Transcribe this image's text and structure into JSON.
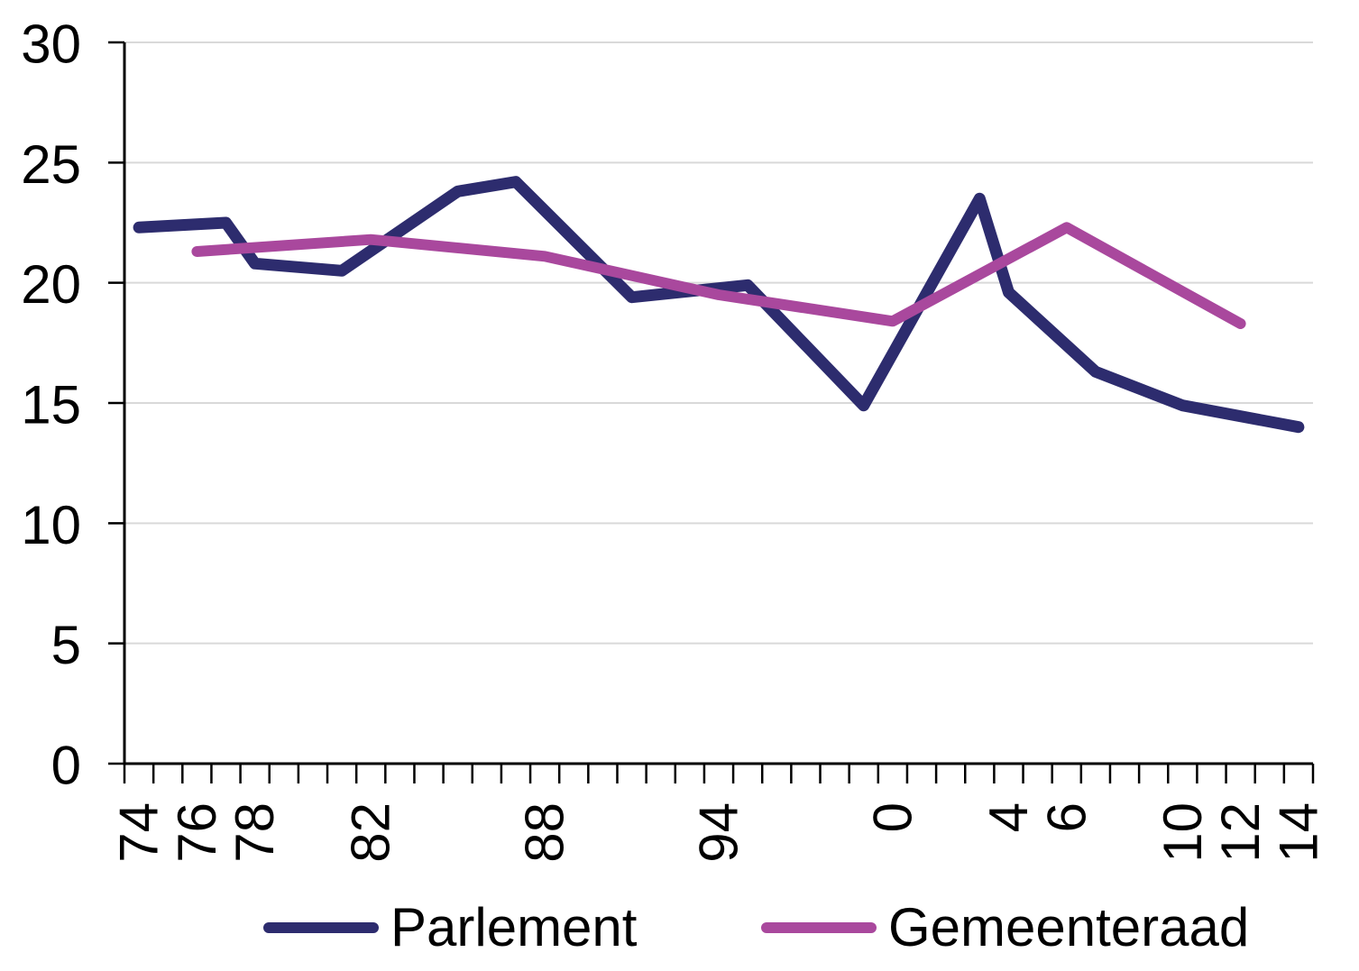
{
  "chart_data": {
    "type": "line",
    "title": "",
    "xlabel": "",
    "ylabel": "",
    "grid": "horizontal-only",
    "legend_position": "bottom-center",
    "background_color": "#ffffff",
    "gridline_color": "#d9d9d9",
    "axis_color": "#000000",
    "x_axis": {
      "unit": "election-year (1974-2014, one tick per year)",
      "range_years": [
        1974,
        2015
      ],
      "labels": [
        {
          "text": "74",
          "year": 1974
        },
        {
          "text": "76",
          "year": 1976
        },
        {
          "text": "78",
          "year": 1978
        },
        {
          "text": "82",
          "year": 1982
        },
        {
          "text": "88",
          "year": 1988
        },
        {
          "text": "94",
          "year": 1994
        },
        {
          "text": "0",
          "year": 2000
        },
        {
          "text": "4",
          "year": 2004
        },
        {
          "text": "6",
          "year": 2006
        },
        {
          "text": "10",
          "year": 2010
        },
        {
          "text": "12",
          "year": 2012
        },
        {
          "text": "14",
          "year": 2014
        }
      ]
    },
    "y_axis": {
      "min": 0,
      "max": 30,
      "tick_step": 5,
      "tick_labels": [
        "0",
        "5",
        "10",
        "15",
        "20",
        "25",
        "30"
      ]
    },
    "series": [
      {
        "name": "Parlement",
        "color": "#2d2c6e",
        "points": [
          [
            1974,
            22.3
          ],
          [
            1977,
            22.5
          ],
          [
            1978,
            20.8
          ],
          [
            1981,
            20.5
          ],
          [
            1985,
            23.8
          ],
          [
            1987,
            24.2
          ],
          [
            1991,
            19.4
          ],
          [
            1995,
            19.9
          ],
          [
            1999,
            14.9
          ],
          [
            2003,
            23.5
          ],
          [
            2004,
            19.6
          ],
          [
            2007,
            16.3
          ],
          [
            2010,
            14.9
          ],
          [
            2014,
            14.0
          ]
        ]
      },
      {
        "name": "Gemeenteraad",
        "color": "#a9489d",
        "points": [
          [
            1976,
            21.3
          ],
          [
            1982,
            21.8
          ],
          [
            1988,
            21.1
          ],
          [
            1994,
            19.5
          ],
          [
            2000,
            18.4
          ],
          [
            2006,
            22.3
          ],
          [
            2012,
            18.3
          ]
        ]
      }
    ]
  }
}
